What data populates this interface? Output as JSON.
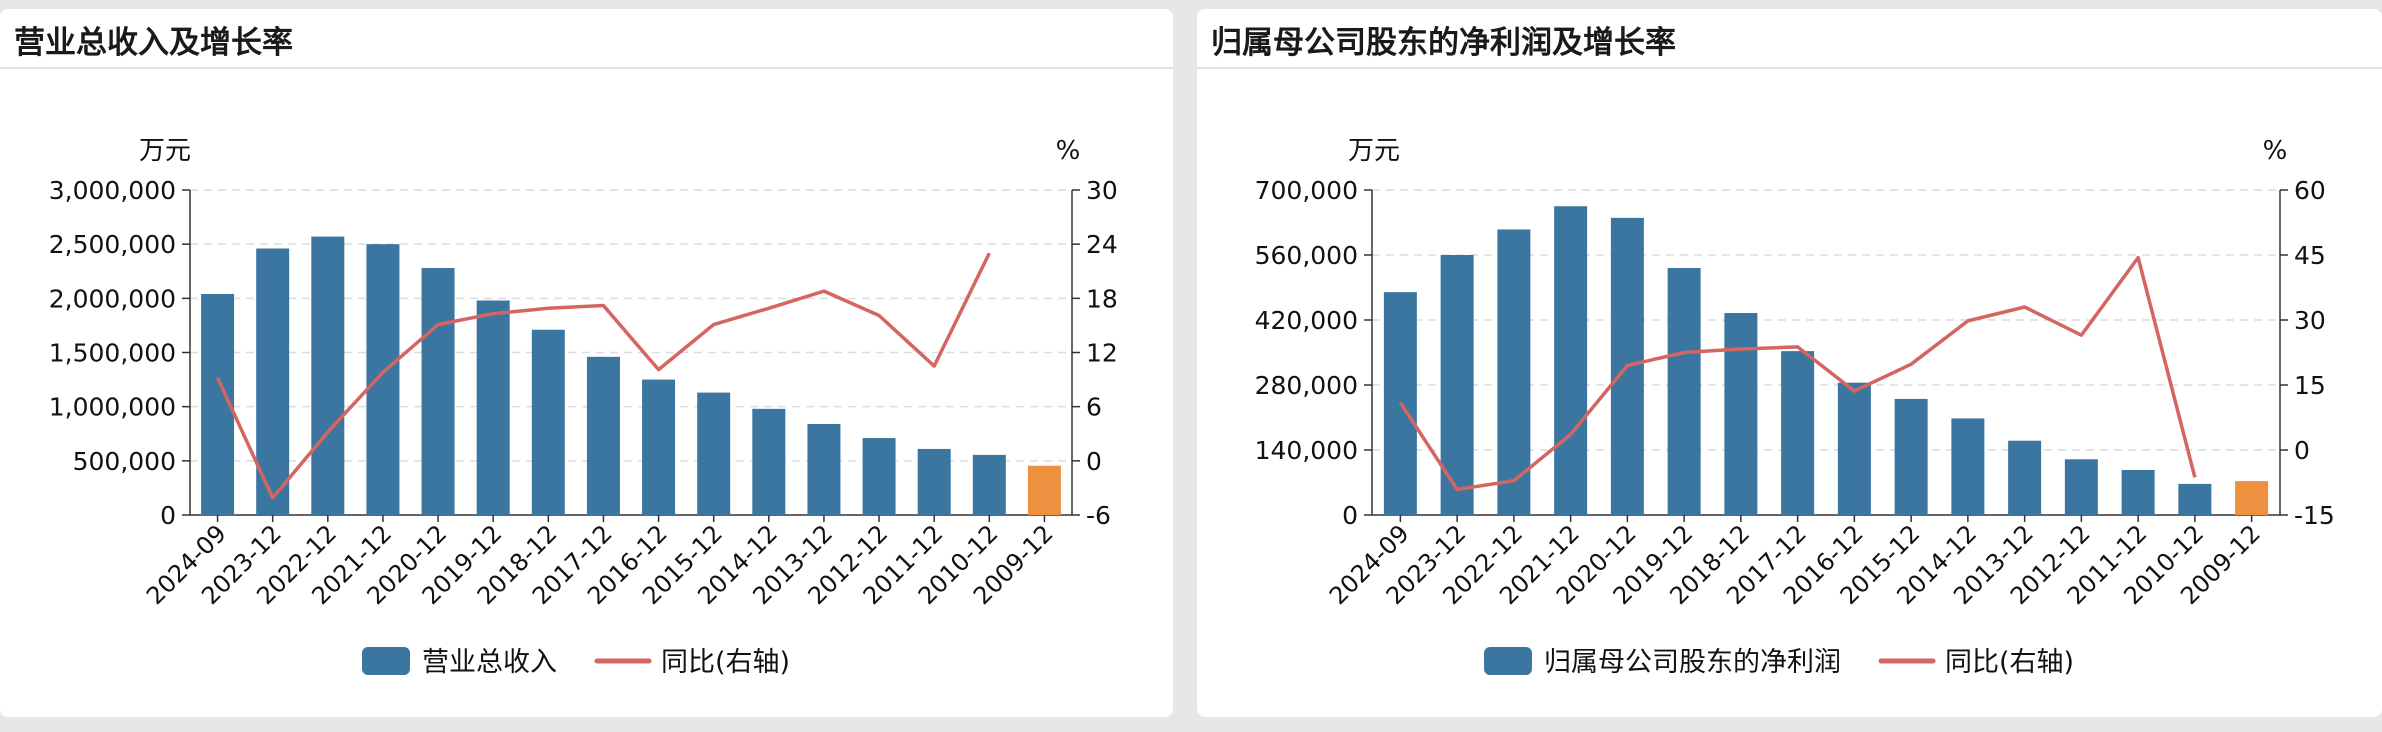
{
  "colors": {
    "bar": "#3b76a1",
    "bar_highlight": "#ed9140",
    "line": "#d46561",
    "grid": "#d9dce0",
    "axis": "#333333"
  },
  "chart_data": [
    {
      "type": "bar",
      "title": "营业总收入及增长率",
      "categories": [
        "2024-09",
        "2023-12",
        "2022-12",
        "2021-12",
        "2020-12",
        "2019-12",
        "2018-12",
        "2017-12",
        "2016-12",
        "2015-12",
        "2014-12",
        "2013-12",
        "2012-12",
        "2011-12",
        "2010-12",
        "2009-12"
      ],
      "ylabel_unit": "万元",
      "y2label_unit": "%",
      "ylim": [
        0,
        3000000
      ],
      "yticks": [
        0,
        500000,
        1000000,
        1500000,
        2000000,
        2500000,
        3000000
      ],
      "ytick_labels": [
        "0",
        "500,000",
        "1,000,000",
        "1,500,000",
        "2,000,000",
        "2,500,000",
        "3,000,000"
      ],
      "y2lim": [
        -6,
        30
      ],
      "y2ticks": [
        -6,
        0,
        6,
        12,
        18,
        24,
        30
      ],
      "y2tick_labels": [
        "-6",
        "0",
        "6",
        "12",
        "18",
        "24",
        "30"
      ],
      "grid": true,
      "legend_position": "bottom",
      "highlight_index": 15,
      "series": [
        {
          "name": "营业总收入",
          "kind": "bar",
          "axis": "left",
          "values": [
            2040000,
            2460000,
            2570000,
            2500000,
            2280000,
            1980000,
            1710000,
            1460000,
            1250000,
            1130000,
            980000,
            840000,
            710000,
            610000,
            555000,
            455000
          ]
        },
        {
          "name": "同比(右轴)",
          "kind": "line",
          "axis": "right",
          "values": [
            9.2,
            -4.1,
            3.2,
            9.8,
            15.1,
            16.3,
            16.9,
            17.2,
            10.1,
            15.1,
            16.9,
            18.8,
            16.1,
            10.5,
            23.0,
            null
          ]
        }
      ]
    },
    {
      "type": "bar",
      "title": "归属母公司股东的净利润及增长率",
      "categories": [
        "2024-09",
        "2023-12",
        "2022-12",
        "2021-12",
        "2020-12",
        "2019-12",
        "2018-12",
        "2017-12",
        "2016-12",
        "2015-12",
        "2014-12",
        "2013-12",
        "2012-12",
        "2011-12",
        "2010-12",
        "2009-12"
      ],
      "ylabel_unit": "万元",
      "y2label_unit": "%",
      "ylim": [
        0,
        700000
      ],
      "yticks": [
        0,
        140000,
        280000,
        420000,
        560000,
        700000
      ],
      "ytick_labels": [
        "0",
        "140,000",
        "280,000",
        "420,000",
        "560,000",
        "700,000"
      ],
      "y2lim": [
        -15,
        60
      ],
      "y2ticks": [
        -15,
        0,
        15,
        30,
        45,
        60
      ],
      "y2tick_labels": [
        "-15",
        "0",
        "15",
        "30",
        "45",
        "60"
      ],
      "grid": true,
      "legend_position": "bottom",
      "highlight_index": 15,
      "series": [
        {
          "name": "归属母公司股东的净利润",
          "kind": "bar",
          "axis": "left",
          "values": [
            480000,
            560000,
            615000,
            665000,
            640000,
            532000,
            435000,
            353000,
            285000,
            250000,
            208000,
            160000,
            120000,
            97000,
            67000,
            73000
          ]
        },
        {
          "name": "同比(右轴)",
          "kind": "line",
          "axis": "right",
          "values": [
            10.9,
            -9.1,
            -7.1,
            3.6,
            19.5,
            22.5,
            23.3,
            23.8,
            13.6,
            19.8,
            29.8,
            33.0,
            26.5,
            44.4,
            -6.3,
            null
          ]
        }
      ]
    }
  ]
}
